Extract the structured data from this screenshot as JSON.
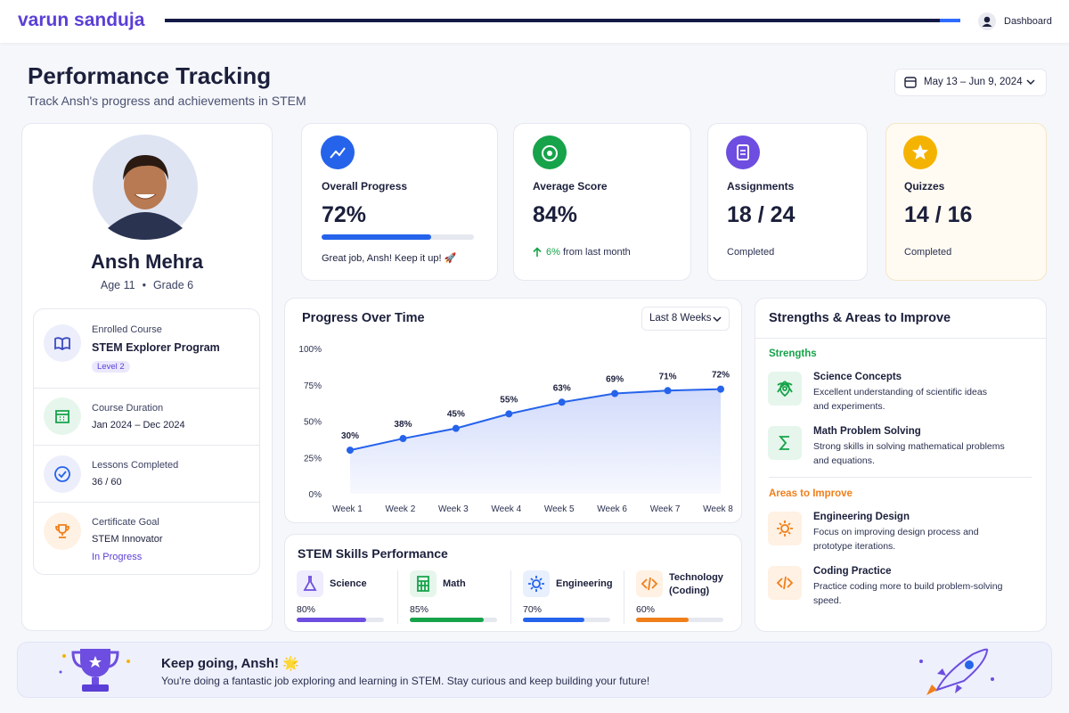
{
  "header": {
    "brand": "varun sanduja",
    "nav": "Dashboard"
  },
  "page": {
    "title": "Performance Tracking",
    "subtitle": "Track Ansh's progress and achievements in STEM",
    "date_range": "May 13 – Jun 9, 2024"
  },
  "profile": {
    "name": "Ansh Mehra",
    "age": "Age 11",
    "grade": "Grade 6",
    "details": [
      {
        "label": "Enrolled Course",
        "value": "STEM Explorer Program",
        "badge": "Level 2"
      },
      {
        "label": "Course Duration",
        "value": "Jan 2024 – Dec 2024"
      },
      {
        "label": "Lessons Completed",
        "value": "36 / 60"
      },
      {
        "label": "Certificate Goal",
        "value": "STEM Innovator",
        "status": "In Progress"
      }
    ]
  },
  "stats": [
    {
      "label": "Overall Progress",
      "value": {
        "value": 72,
        "label": "72%"
      },
      "note": "Great job, Ansh! Keep it up! 🚀",
      "color": "#2563eb"
    },
    {
      "label": "Average Score",
      "value": "84%",
      "change": "6%",
      "note": "from last month"
    },
    {
      "label": "Assignments",
      "value": "18 / 24",
      "note": "Completed"
    },
    {
      "label": "Quizzes",
      "value": "14 / 16",
      "note": "Completed"
    }
  ],
  "chart_data": {
    "type": "line",
    "title": "Progress Over Time",
    "filter": "Last 8 Weeks",
    "categories": [
      "Week 1",
      "Week 2",
      "Week 3",
      "Week 4",
      "Week 5",
      "Week 6",
      "Week 7",
      "Week 8"
    ],
    "values": [
      30,
      38,
      45,
      55,
      63,
      69,
      71,
      72
    ],
    "value_labels": [
      "30%",
      "38%",
      "45%",
      "55%",
      "63%",
      "69%",
      "71%",
      "72%"
    ],
    "color": "#2563eb",
    "ylim": [
      0,
      100
    ],
    "yticks": [
      {
        "value": 0,
        "label": "0%"
      },
      {
        "value": 25,
        "label": "25%"
      },
      {
        "value": 50,
        "label": "50%"
      },
      {
        "value": 75,
        "label": "75%"
      },
      {
        "value": 100,
        "label": "100%"
      }
    ]
  },
  "skills": {
    "title": "STEM Skills Performance",
    "items": [
      {
        "name": "Science",
        "value": {
          "value": 80,
          "label": "80%"
        },
        "color": "#6d4ee0"
      },
      {
        "name": "Math",
        "value": {
          "value": 85,
          "label": "85%"
        },
        "color": "#16a34a"
      },
      {
        "name": "Engineering",
        "value": {
          "value": 70,
          "label": "70%"
        },
        "color": "#2563eb"
      },
      {
        "name": "Technology (Coding)",
        "value": {
          "value": 60,
          "label": "60%"
        },
        "color": "#f07f1a"
      }
    ]
  },
  "strengths": {
    "title": "Strengths & Areas to Improve",
    "strengths_heading": "Strengths",
    "strengths": [
      {
        "title": "Science Concepts",
        "description": "Excellent understanding of scientific ideas and experiments."
      },
      {
        "title": "Math Problem Solving",
        "description": "Strong skills in solving mathematical problems and equations."
      }
    ],
    "improve_heading": "Areas to Improve",
    "improve": [
      {
        "title": "Engineering Design",
        "description": "Focus on improving design process and prototype iterations."
      },
      {
        "title": "Coding Practice",
        "description": "Practice coding more to build problem-solving speed."
      }
    ]
  },
  "banner": {
    "title": "Keep going, Ansh! 🌟",
    "text": "You're doing a fantastic job exploring and learning in STEM. Stay curious and keep building your future!"
  }
}
